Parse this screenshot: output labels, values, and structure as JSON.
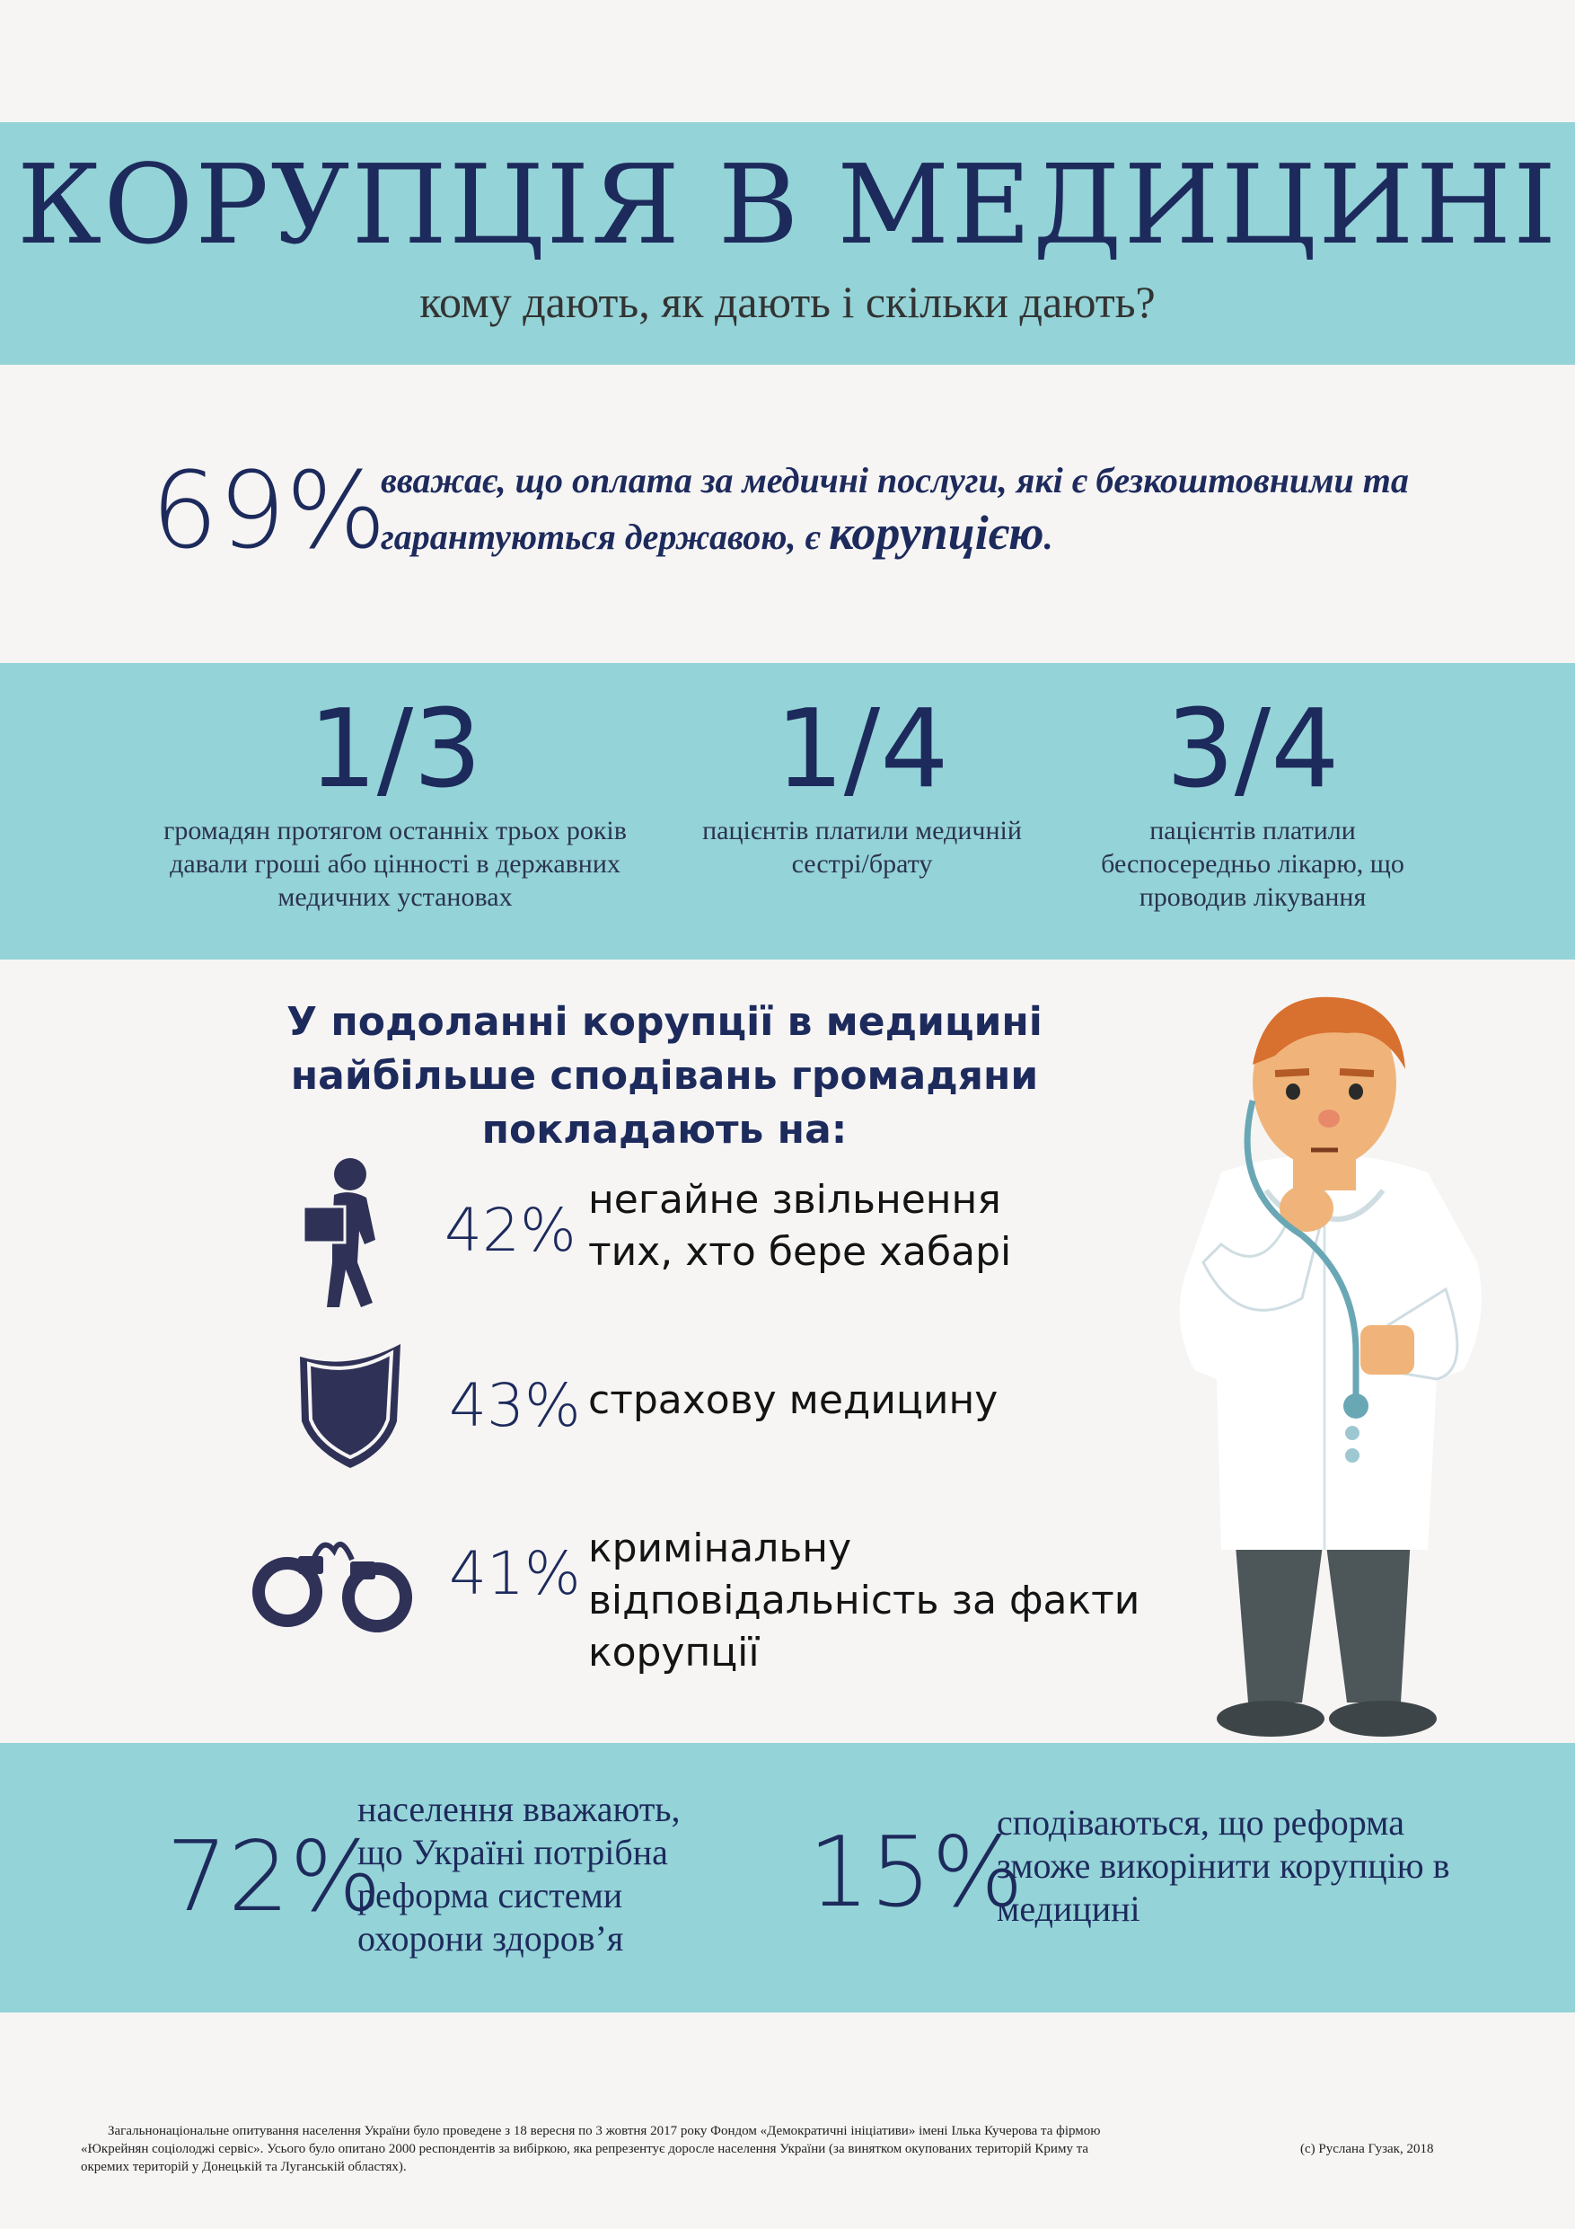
{
  "header": {
    "title": "КОРУПЦІЯ В МЕДИЦИНІ",
    "subtitle": "кому дають, як дають і скільки дають?"
  },
  "intro": {
    "percent": "69%",
    "text_before": "вважає, що оплата за медичні послуги, які є безкоштовними та гарантуються державою, є ",
    "accent": "корупцією",
    "text_after": "."
  },
  "fractions": [
    {
      "value": "1/3",
      "description": "громадян протягом останніх трьох років давали гроші або цінності в державних медичних установах"
    },
    {
      "value": "1/4",
      "description": "пацієнтів платили медичній сестрі/брату"
    },
    {
      "value": "3/4",
      "description": "пацієнтів платили беспосередньо лікарю, що проводив лікування"
    }
  ],
  "hopes": {
    "heading": "У подоланні корупції в медицині найбільше сподівань громадяни покладають на:",
    "items": [
      {
        "percent": "42%",
        "text": "негайне звільнення тих, хто бере хабарі",
        "icon": "person-carrying-box-icon"
      },
      {
        "percent": "43%",
        "text": "страхову медицину",
        "icon": "shield-icon"
      },
      {
        "percent": "41%",
        "text": "кримінальну відповідальність за факти корупції",
        "icon": "handcuffs-icon"
      }
    ]
  },
  "bottom": [
    {
      "percent": "72%",
      "text": "населення вважають, що Україні потрібна реформа системи охорони здоров’я"
    },
    {
      "percent": "15%",
      "text": "сподіваються, що реформа зможе викорінити корупцію в медицині"
    }
  ],
  "footnote": "Загальнонаціональне опитування населення України було проведене з 18 вересня по 3 жовтня 2017 року Фондом «Демократичні ініціативи» імені Ілька Кучерова та фірмою «Юкрейнян соціолоджі сервіс». Усього було опитано 2000 респондентів за вибіркою, яка репрезентує доросле населення України (за винятком окупованих територій Криму та окремих територій у Донецькій та Луганській областях).",
  "copyright": "(с) Руслана Гузак, 2018",
  "colors": {
    "band": "#94d3d7",
    "navy": "#1d2a5c",
    "background": "#f6f5f4"
  }
}
